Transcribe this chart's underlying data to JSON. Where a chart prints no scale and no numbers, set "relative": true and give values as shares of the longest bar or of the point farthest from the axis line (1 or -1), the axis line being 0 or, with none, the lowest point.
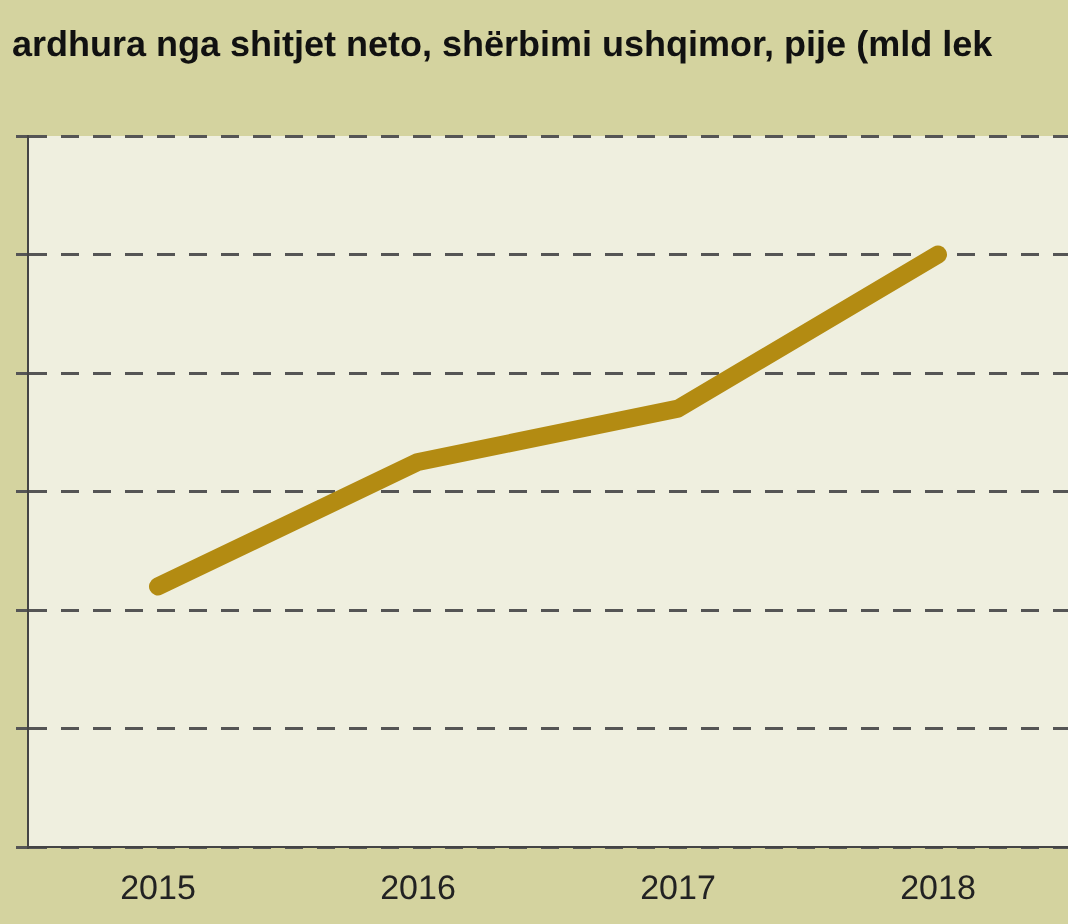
{
  "chart_data": {
    "type": "line",
    "title": "ardhura nga shitjet neto, shërbimi ushqimor, pije (mld lek",
    "categories": [
      "2015",
      "2016",
      "2017",
      "2018"
    ],
    "series": [
      {
        "color": "#b38b12",
        "values": [
          0.44,
          0.65,
          0.74,
          1
        ]
      }
    ],
    "relative": true,
    "grid": "y",
    "legend": false,
    "marker": "none",
    "line_style": "solid"
  }
}
